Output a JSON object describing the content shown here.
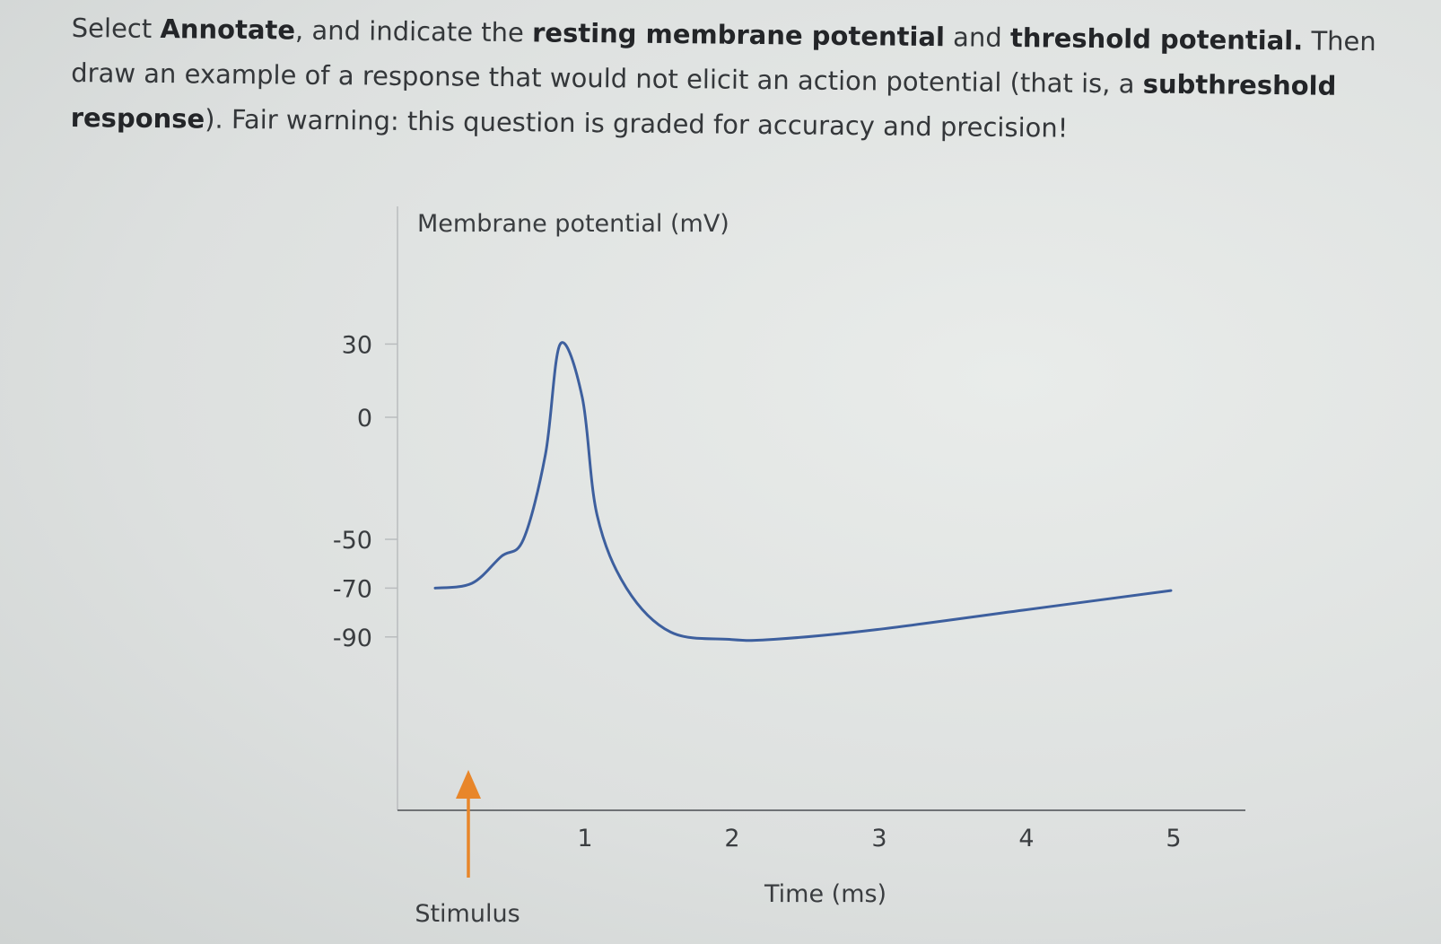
{
  "question": {
    "segments": [
      {
        "text": "Select ",
        "bold": false
      },
      {
        "text": "Annotate",
        "bold": true
      },
      {
        "text": ", and indicate the ",
        "bold": false
      },
      {
        "text": "resting membrane potential",
        "bold": true
      },
      {
        "text": " and ",
        "bold": false
      },
      {
        "text": "threshold potential.",
        "bold": true
      },
      {
        "text": " Then draw an example of a response that would not elicit an action potential (that is, a ",
        "bold": false
      },
      {
        "text": "subthreshold response",
        "bold": true
      },
      {
        "text": ").  Fair warning: this question is graded for accuracy and precision!",
        "bold": false
      }
    ]
  },
  "chart_data": {
    "type": "line",
    "ylabel": "Membrane potential (mV)",
    "xlabel": "Time (ms)",
    "y_ticks": [
      30,
      0,
      -50,
      -70,
      -90
    ],
    "y_tick_labels": [
      "30",
      "0",
      "-50",
      "-70",
      "-90"
    ],
    "x_ticks": [
      1,
      2,
      3,
      4,
      5
    ],
    "x_tick_labels": [
      "1",
      "2",
      "3",
      "4",
      "5"
    ],
    "series": [
      {
        "color": "#3d5f9e",
        "x": [
          0.0,
          0.25,
          0.45,
          0.6,
          0.75,
          0.85,
          1.0,
          1.1,
          1.3,
          1.6,
          2.0,
          2.3,
          3.0,
          4.0,
          5.0
        ],
        "y": [
          -70,
          -68,
          -57,
          -50,
          -15,
          30,
          8,
          -40,
          -70,
          -88,
          -91,
          -91,
          -87,
          -79,
          -71
        ]
      }
    ],
    "annotation": {
      "label": "Stimulus",
      "x": 0.25,
      "color": "#e8862a"
    }
  }
}
